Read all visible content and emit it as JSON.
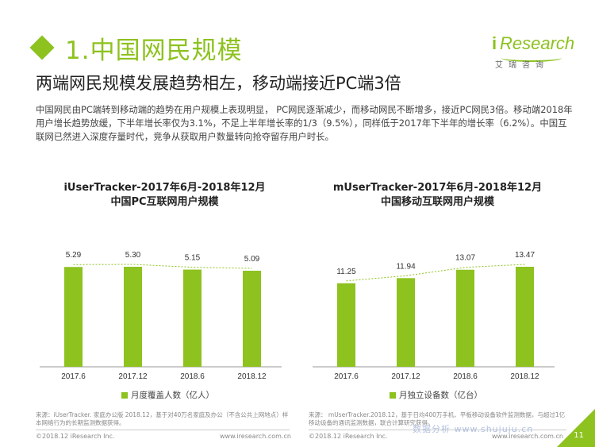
{
  "header": {
    "title": "1.中国网民规模",
    "subtitle": "两端网民规模发展趋势相左，移动端接近PC端3倍",
    "logo_main": "Research",
    "logo_i": "i",
    "logo_sub": "艾瑞咨询"
  },
  "description": "中国网民由PC端转到移动端的趋势在用户规模上表现明显， PC网民逐渐减少，而移动网民不断增多，接近PC网民3倍。移动端2018年用户增长趋势放缓，下半年增长率仅为3.1%，不足上半年增长率的1/3（9.5%），同样低于2017年下半年的增长率（6.2%）。中国互联网已然进入深度存量时代，竞争从获取用户数量转向抢夺留存用户时长。",
  "colors": {
    "accent": "#8dc21f",
    "trend_line": "#8dc21f"
  },
  "chart_data": [
    {
      "type": "bar",
      "title": "iUserTracker-2017年6月-2018年12月",
      "subtitle": "中国PC互联网用户规模",
      "categories": [
        "2017.6",
        "2017.12",
        "2018.6",
        "2018.12"
      ],
      "series": [
        {
          "name": "月度覆盖人数（亿人）",
          "values": [
            5.29,
            5.3,
            5.15,
            5.09
          ]
        }
      ],
      "value_labels": [
        "5.29",
        "5.30",
        "5.15",
        "5.09"
      ],
      "trend_line": "dotted",
      "legend": "bottom",
      "grid": false
    },
    {
      "type": "bar",
      "title": "mUserTracker-2017年6月-2018年12月",
      "subtitle": "中国移动互联网用户规模",
      "categories": [
        "2017.6",
        "2017.12",
        "2018.6",
        "2018.12"
      ],
      "series": [
        {
          "name": "月独立设备数（亿台）",
          "values": [
            11.25,
            11.94,
            13.07,
            13.47
          ]
        }
      ],
      "value_labels": [
        "11.25",
        "11.94",
        "13.07",
        "13.47"
      ],
      "trend_line": "dotted",
      "legend": "bottom",
      "grid": false
    }
  ],
  "footnotes": {
    "left": "来源：iUserTracker. 家庭办公版 2018.12，基于对40万名家庭及办公（不含公共上网地点）样本网络行为的长期监测数据获得。",
    "right": "来源： mUserTracker.2018.12，基于日均400万手机、平板移动设备软件监测数据，与超过1亿移动设备的通讯监测数据，联合计算研究获得。"
  },
  "footer": {
    "copyright_left": "©2018.12 iResearch Inc.",
    "url_left": "www.iresearch.com.cn",
    "copyright_right": "©2018.12 iResearch Inc.",
    "url_right": "www.iresearch.com.cn",
    "page_number": "11",
    "watermark": "数据分析 www.shujuju.cn"
  }
}
